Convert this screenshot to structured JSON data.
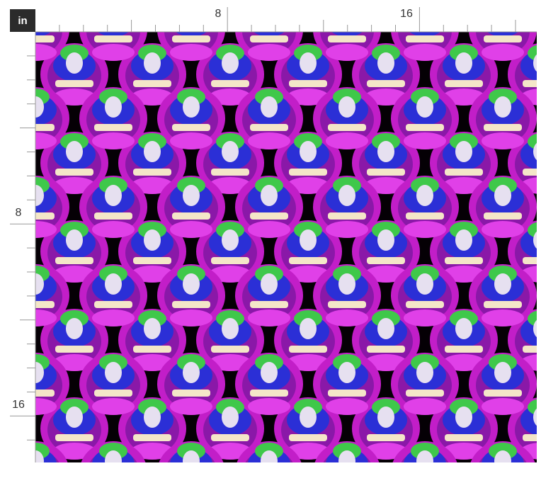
{
  "unit_label": "in",
  "top_ruler": {
    "labels": [
      "8",
      "16"
    ]
  },
  "left_ruler": {
    "labels": [
      "8",
      "16"
    ]
  }
}
